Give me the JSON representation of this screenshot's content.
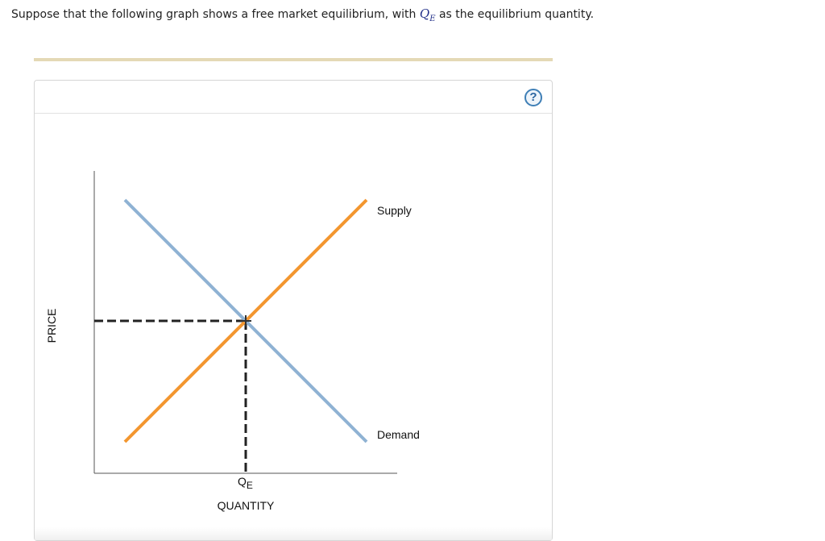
{
  "question": {
    "text_before": "Suppose that the following graph shows a free market equilibrium, with ",
    "math_symbol": "Q",
    "math_subscript": "E",
    "text_after": " as the equilibrium quantity."
  },
  "toolbar": {
    "help_label": "?"
  },
  "chart_data": {
    "type": "line",
    "xlabel": "QUANTITY",
    "ylabel": "PRICE",
    "xlim": [
      0,
      100
    ],
    "ylim": [
      0,
      100
    ],
    "grid": false,
    "series": [
      {
        "name": "Supply",
        "x": [
          10,
          90
        ],
        "y": [
          10,
          90
        ]
      },
      {
        "name": "Demand",
        "x": [
          10,
          90
        ],
        "y": [
          90,
          10
        ]
      }
    ],
    "equilibrium": {
      "x": 50,
      "y": 50,
      "x_label_main": "Q",
      "x_label_sub": "E"
    },
    "colors": {
      "supply": "#f3962f",
      "demand": "#8fb2d3",
      "guide": "#222222"
    }
  }
}
